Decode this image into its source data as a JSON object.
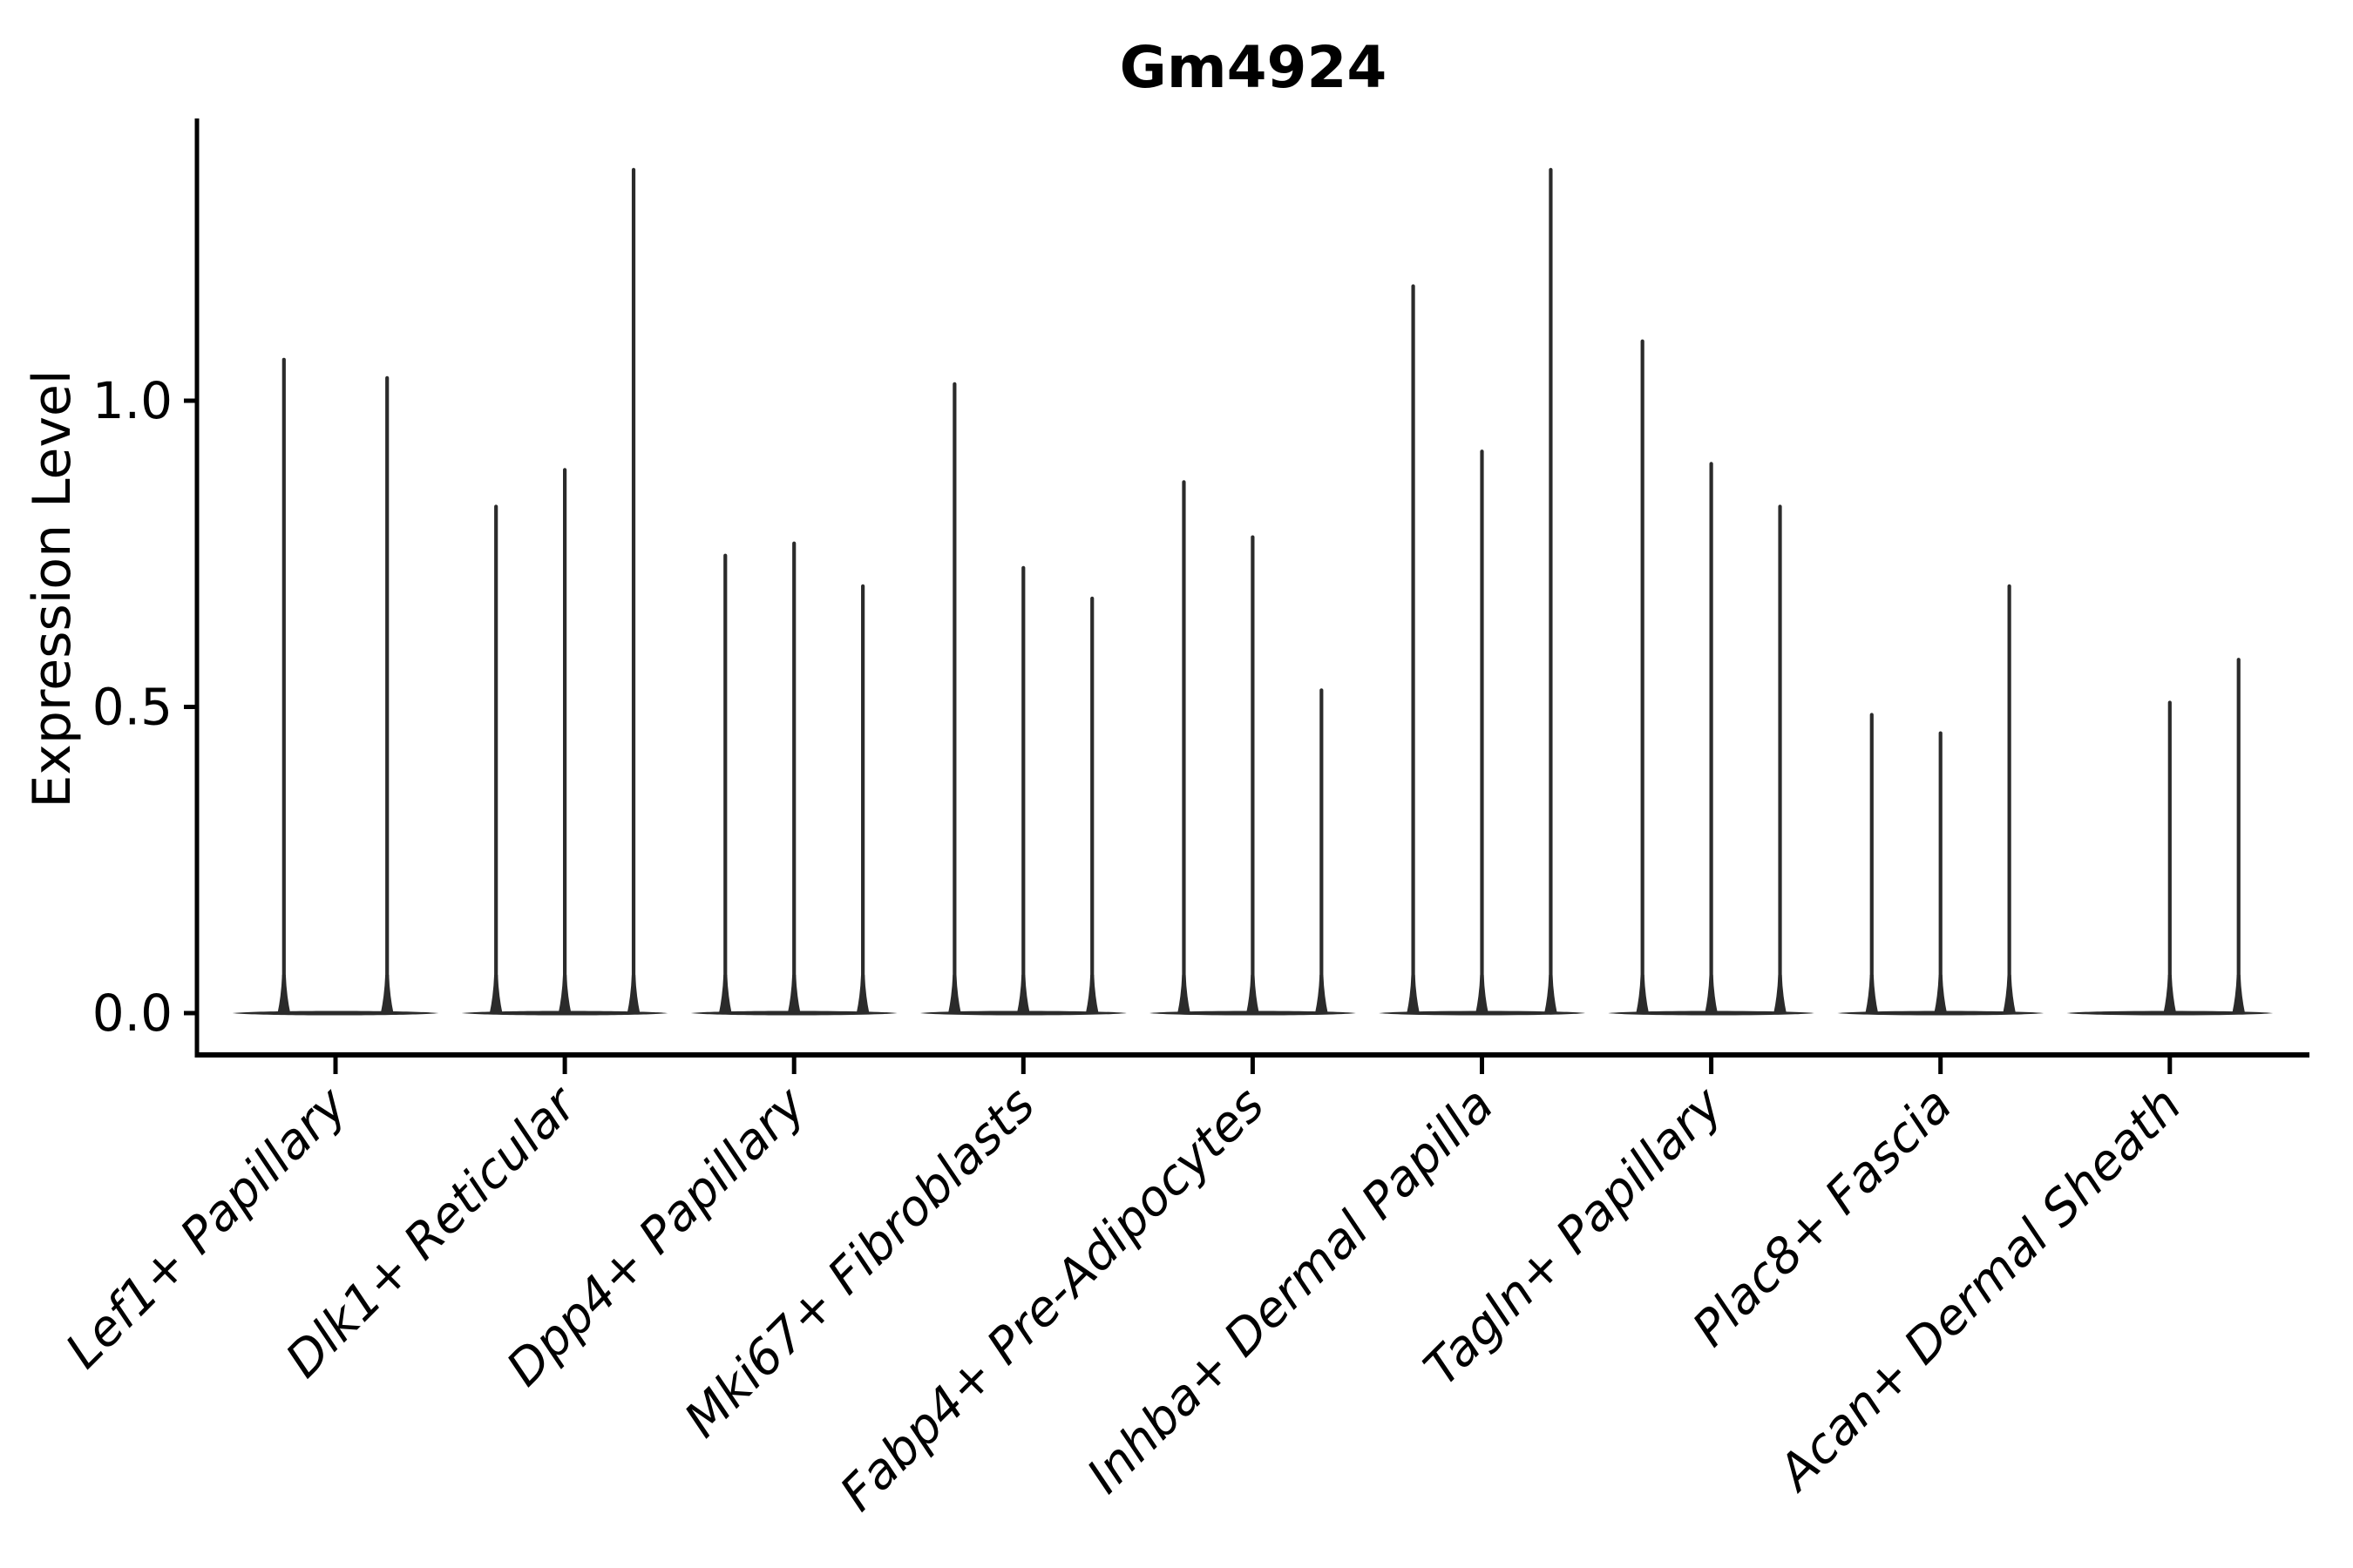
{
  "chart_data": {
    "type": "violin",
    "title": "Gm4924",
    "ylabel": "Expression Level",
    "xlabel": "",
    "ylim": [
      0,
      1.45
    ],
    "ytick_values": [
      0.0,
      0.5,
      1.0
    ],
    "ytick_labels": [
      "0.0",
      "0.5",
      "1.0"
    ],
    "grid": false,
    "legend": null,
    "categories": [
      "Lef1+ Papillary",
      "Dlk1+ Reticular",
      "Dpp4+ Papillary",
      "Mki67+ Fibroblasts",
      "Fabp4+ Pre-Adipocytes",
      "Inhba+ Dermal Papilla",
      "Tagln+ Papillary",
      "Plac8+ Fascia",
      "Acan+ Dermal Sheath"
    ],
    "groups": [
      {
        "category": "Lef1+ Papillary",
        "violin_peaks": [
          1.07,
          1.04
        ]
      },
      {
        "category": "Dlk1+ Reticular",
        "violin_peaks": [
          0.83,
          0.89,
          1.38
        ]
      },
      {
        "category": "Dpp4+ Papillary",
        "violin_peaks": [
          0.75,
          0.77,
          0.7
        ]
      },
      {
        "category": "Mki67+ Fibroblasts",
        "violin_peaks": [
          1.03,
          0.73,
          0.68
        ]
      },
      {
        "category": "Fabp4+ Pre-Adipocytes",
        "violin_peaks": [
          0.87,
          0.78,
          0.53
        ]
      },
      {
        "category": "Inhba+ Dermal Papilla",
        "violin_peaks": [
          1.19,
          0.92,
          1.38
        ]
      },
      {
        "category": "Tagln+ Papillary",
        "violin_peaks": [
          1.1,
          0.9,
          0.83
        ]
      },
      {
        "category": "Plac8+ Fascia",
        "violin_peaks": [
          0.49,
          0.46,
          0.7
        ]
      },
      {
        "category": "Acan+ Dermal Sheath",
        "violin_peaks": [
          0.0,
          0.51,
          0.58
        ]
      }
    ],
    "violin_description": "needle-thin violins: wide flat base at expression 0 with a thin spike up to the max expression value",
    "x_label_rotation_deg": 45,
    "style": {
      "violin_color": "#2b2b2b",
      "axis_color": "#000000",
      "text_color": "#000000",
      "background": "#ffffff"
    }
  }
}
